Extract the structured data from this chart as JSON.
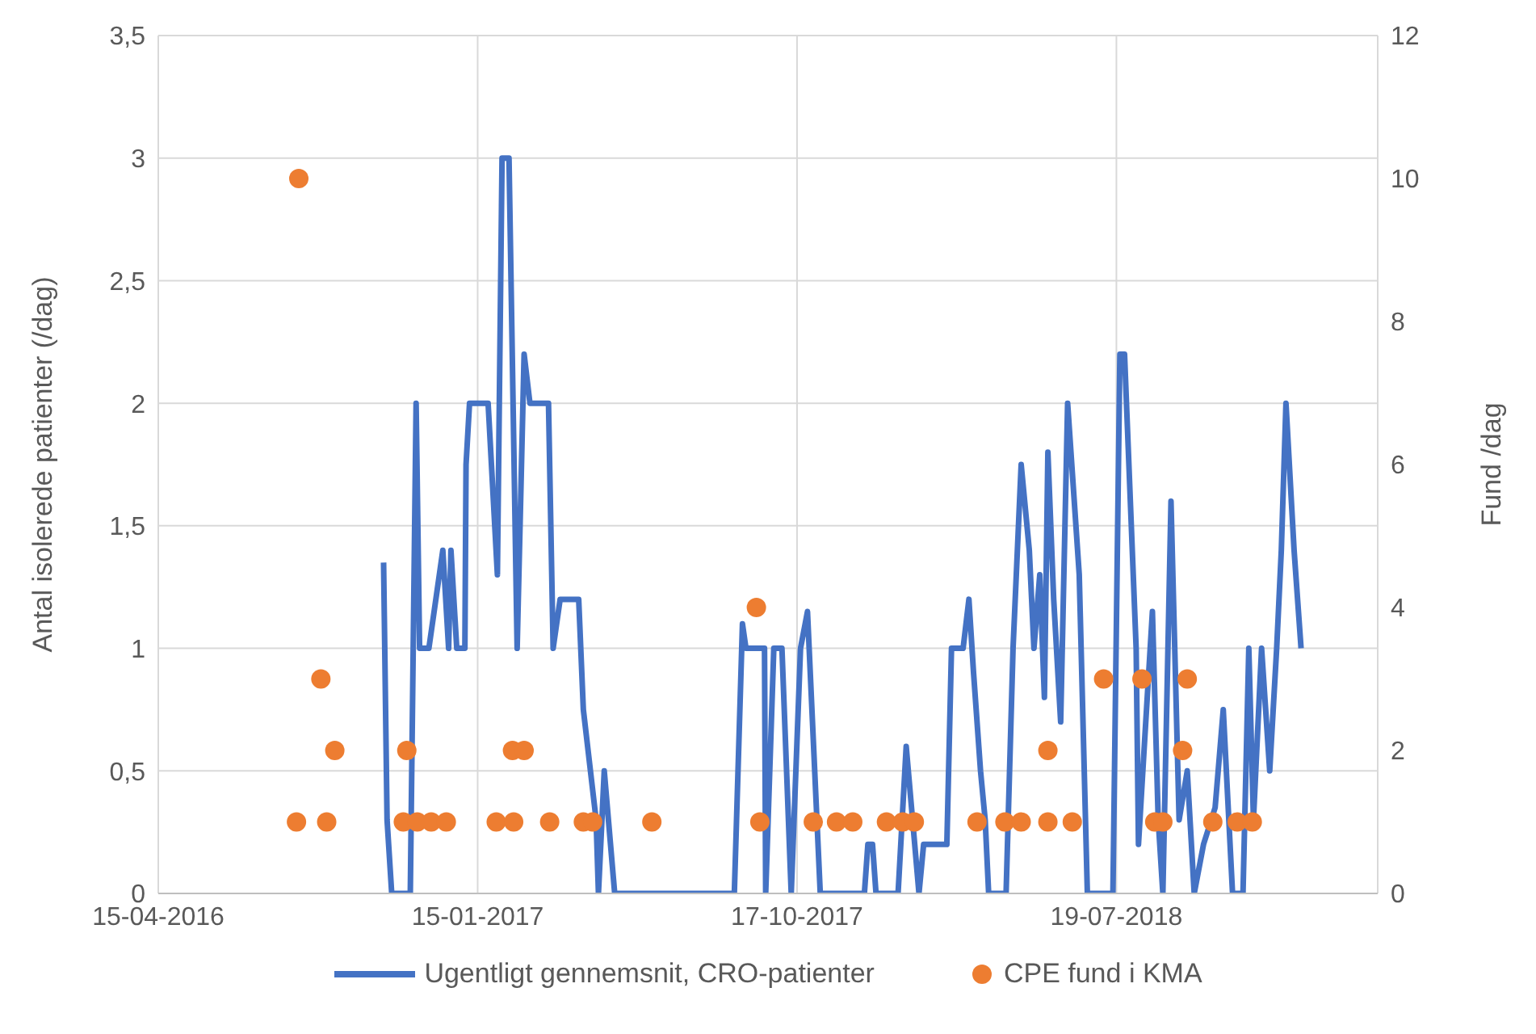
{
  "chart_data": {
    "type": "line",
    "xlim": [
      "2016-04-15",
      "2019-03-01"
    ],
    "xticks": [
      {
        "value": "2016-04-15",
        "label": "15-04-2016"
      },
      {
        "value": "2017-01-15",
        "label": "15-01-2017"
      },
      {
        "value": "2017-10-17",
        "label": "17-10-2017"
      },
      {
        "value": "2018-07-19",
        "label": "19-07-2018"
      }
    ],
    "ylim": [
      0,
      3.5
    ],
    "yticks": [
      0,
      {
        "value": 0.5,
        "label": "0,5"
      },
      1,
      {
        "value": 1.5,
        "label": "1,5"
      },
      2,
      {
        "value": 2.5,
        "label": "2,5"
      },
      3,
      {
        "value": 3.5,
        "label": "3,5"
      }
    ],
    "y2lim": [
      0,
      12
    ],
    "y2ticks": [
      0,
      2,
      4,
      6,
      8,
      10,
      12
    ],
    "ylabel": "Antal isolerede patienter (/dag)",
    "y2label": "Fund /dag",
    "grid": true,
    "legend": "bottom",
    "series": [
      {
        "name": "Ugentligt gennemsnit, CRO-patienter",
        "color": "#4472c4",
        "x": [
          "2016-10-26",
          "2016-10-29",
          "2016-11-02",
          "2016-11-18",
          "2016-11-23",
          "2016-11-26",
          "2016-12-04",
          "2016-12-16",
          "2016-12-21",
          "2016-12-23",
          "2016-12-28",
          "2017-01-04",
          "2017-01-05",
          "2017-01-08",
          "2017-01-24",
          "2017-02-01",
          "2017-02-05",
          "2017-02-11",
          "2017-02-18",
          "2017-02-24",
          "2017-03-01",
          "2017-03-17",
          "2017-03-21",
          "2017-03-27",
          "2017-04-12",
          "2017-04-16",
          "2017-04-27",
          "2017-04-29",
          "2017-05-04",
          "2017-05-13",
          "2017-08-24",
          "2017-08-31",
          "2017-09-03",
          "2017-09-19",
          "2017-09-20",
          "2017-09-27",
          "2017-10-04",
          "2017-10-12",
          "2017-10-20",
          "2017-10-26",
          "2017-11-06",
          "2017-12-14",
          "2017-12-17",
          "2017-12-21",
          "2017-12-24",
          "2018-01-12",
          "2018-01-19",
          "2018-01-30",
          "2018-02-03",
          "2018-02-23",
          "2018-02-27",
          "2018-03-09",
          "2018-03-14",
          "2018-03-18",
          "2018-03-24",
          "2018-03-28",
          "2018-03-31",
          "2018-04-15",
          "2018-04-21",
          "2018-04-28",
          "2018-05-05",
          "2018-05-09",
          "2018-05-14",
          "2018-05-18",
          "2018-05-21",
          "2018-05-26",
          "2018-06-01",
          "2018-06-07",
          "2018-06-17",
          "2018-06-24",
          "2018-07-16",
          "2018-07-22",
          "2018-07-26",
          "2018-08-05",
          "2018-08-07",
          "2018-08-12",
          "2018-08-19",
          "2018-08-24",
          "2018-08-28",
          "2018-09-04",
          "2018-09-11",
          "2018-09-18",
          "2018-09-24",
          "2018-10-02",
          "2018-10-12",
          "2018-10-19",
          "2018-10-27",
          "2018-11-05",
          "2018-11-10",
          "2018-11-14",
          "2018-11-21",
          "2018-11-28",
          "2018-12-04",
          "2018-12-08",
          "2018-12-12",
          "2018-12-19",
          "2018-12-25"
        ],
        "values": [
          1.35,
          0.3,
          0,
          0,
          2,
          1,
          1,
          1.4,
          1,
          1.4,
          1,
          1,
          1.75,
          2,
          2,
          1.3,
          3,
          3,
          1,
          2.2,
          2,
          2,
          1,
          1.2,
          1.2,
          0.75,
          0.3,
          0,
          0.5,
          0,
          0,
          1.1,
          1,
          1,
          0,
          1,
          1,
          0,
          1,
          1.15,
          0,
          0,
          0.2,
          0.2,
          0,
          0,
          0.6,
          0,
          0.2,
          0.2,
          1,
          1,
          1.2,
          0.9,
          0.5,
          0.3,
          0,
          0,
          1,
          1.75,
          1.4,
          1,
          1.3,
          0.8,
          1.8,
          1.2,
          0.7,
          2,
          1.3,
          0,
          0,
          2.2,
          2.2,
          1,
          0.2,
          0.6,
          1.15,
          0.3,
          0,
          1.6,
          0.3,
          0.5,
          0,
          0.2,
          0.35,
          0.75,
          0,
          0,
          1,
          0.3,
          1,
          0.5,
          1,
          1.4,
          2,
          1.4,
          1
        ]
      },
      {
        "name": "CPE fund i KMA",
        "type": "scatter",
        "axis": "y2",
        "color": "#ed7d31",
        "x": [
          "2016-08-12",
          "2016-08-14",
          "2016-09-02",
          "2016-09-07",
          "2016-09-14",
          "2016-11-12",
          "2016-11-15",
          "2016-11-24",
          "2016-12-06",
          "2016-12-19",
          "2017-01-31",
          "2017-02-14",
          "2017-02-15",
          "2017-02-24",
          "2017-03-18",
          "2017-04-16",
          "2017-04-24",
          "2017-06-14",
          "2017-09-12",
          "2017-09-15",
          "2017-10-31",
          "2017-11-20",
          "2017-12-04",
          "2018-01-02",
          "2018-01-16",
          "2018-01-26",
          "2018-03-21",
          "2018-04-14",
          "2018-04-28",
          "2018-05-21",
          "2018-05-21",
          "2018-06-11",
          "2018-07-08",
          "2018-08-10",
          "2018-08-21",
          "2018-08-28",
          "2018-09-14",
          "2018-09-18",
          "2018-10-10",
          "2018-10-31",
          "2018-11-13"
        ],
        "values": [
          1,
          10,
          3,
          1,
          2,
          1,
          2,
          1,
          1,
          1,
          1,
          2,
          1,
          2,
          1,
          1,
          1,
          1,
          4,
          1,
          1,
          1,
          1,
          1,
          1,
          1,
          1,
          1,
          1,
          1,
          2,
          1,
          3,
          3,
          1,
          1,
          2,
          3,
          1,
          1,
          1
        ]
      }
    ]
  }
}
